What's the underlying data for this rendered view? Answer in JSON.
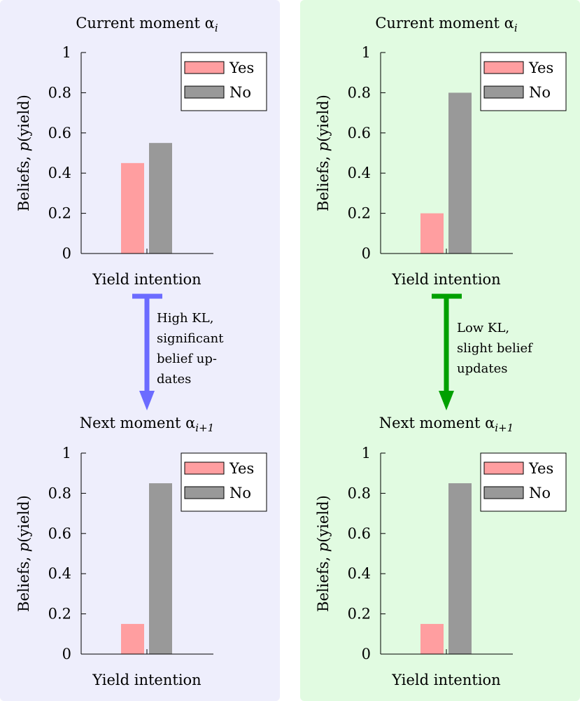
{
  "colors": {
    "panel_left_bg": "#eeeefc",
    "panel_right_bg": "#e1fbe1",
    "yes_bar": "#ff9ea0",
    "no_bar": "#999999",
    "arrow_left": "#6b6bff",
    "arrow_right": "#00a000",
    "annotation_left": "#1f1fff",
    "annotation_right": "#1a9a1a"
  },
  "panels": [
    {
      "top_title": "Current moment α",
      "top_title_sub": "i",
      "bottom_title": "Next moment α",
      "bottom_title_sub": "i+1",
      "annotation": [
        "High KL,",
        "significant",
        "belief up-",
        "dates"
      ]
    },
    {
      "top_title": "Current moment α",
      "top_title_sub": "i",
      "bottom_title": "Next moment α",
      "bottom_title_sub": "i+1",
      "annotation": [
        "Low KL,",
        "slight belief",
        "updates"
      ]
    }
  ],
  "chart_data": [
    {
      "type": "bar",
      "position": "top-left",
      "xlabel": "Yield intention",
      "ylabel_prefix": "Beliefs, ",
      "ylabel_var": "p",
      "ylabel_suffix": "(yield)",
      "ylim": [
        0,
        1
      ],
      "yticks": [
        0,
        0.2,
        0.4,
        0.6,
        0.8,
        1
      ],
      "ytick_labels": [
        "0",
        "0.2",
        "0.4",
        "0.6",
        "0.8",
        "1"
      ],
      "legend_position": "top-right",
      "series": [
        {
          "name": "Yes",
          "values": [
            0.45
          ]
        },
        {
          "name": "No",
          "values": [
            0.55
          ]
        }
      ]
    },
    {
      "type": "bar",
      "position": "top-right",
      "xlabel": "Yield intention",
      "ylabel_prefix": "Beliefs, ",
      "ylabel_var": "p",
      "ylabel_suffix": "(yield)",
      "ylim": [
        0,
        1
      ],
      "yticks": [
        0,
        0.2,
        0.4,
        0.6,
        0.8,
        1
      ],
      "ytick_labels": [
        "0",
        "0.2",
        "0.4",
        "0.6",
        "0.8",
        "1"
      ],
      "legend_position": "top-right",
      "series": [
        {
          "name": "Yes",
          "values": [
            0.2
          ]
        },
        {
          "name": "No",
          "values": [
            0.8
          ]
        }
      ]
    },
    {
      "type": "bar",
      "position": "bottom-left",
      "xlabel": "Yield intention",
      "ylabel_prefix": "Beliefs, ",
      "ylabel_var": "p",
      "ylabel_suffix": "(yield)",
      "ylim": [
        0,
        1
      ],
      "yticks": [
        0,
        0.2,
        0.4,
        0.6,
        0.8,
        1
      ],
      "ytick_labels": [
        "0",
        "0.2",
        "0.4",
        "0.6",
        "0.8",
        "1"
      ],
      "legend_position": "top-right",
      "series": [
        {
          "name": "Yes",
          "values": [
            0.15
          ]
        },
        {
          "name": "No",
          "values": [
            0.85
          ]
        }
      ]
    },
    {
      "type": "bar",
      "position": "bottom-right",
      "xlabel": "Yield intention",
      "ylabel_prefix": "Beliefs, ",
      "ylabel_var": "p",
      "ylabel_suffix": "(yield)",
      "ylim": [
        0,
        1
      ],
      "yticks": [
        0,
        0.2,
        0.4,
        0.6,
        0.8,
        1
      ],
      "ytick_labels": [
        "0",
        "0.2",
        "0.4",
        "0.6",
        "0.8",
        "1"
      ],
      "legend_position": "top-right",
      "series": [
        {
          "name": "Yes",
          "values": [
            0.15
          ]
        },
        {
          "name": "No",
          "values": [
            0.85
          ]
        }
      ]
    }
  ]
}
